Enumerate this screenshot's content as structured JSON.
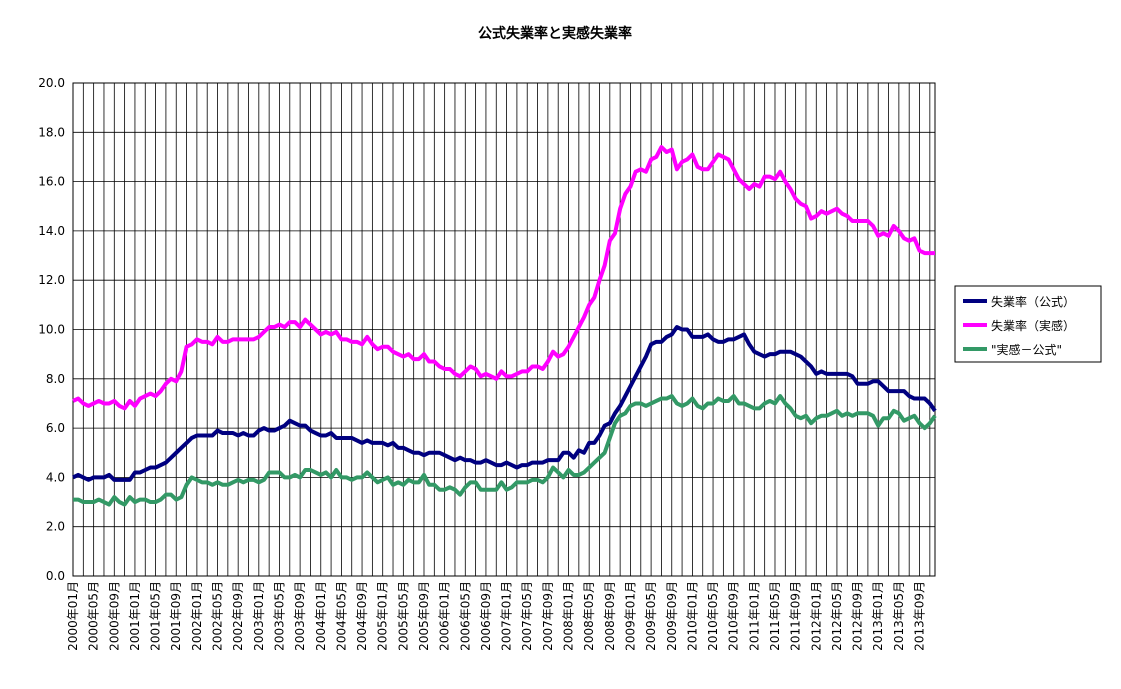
{
  "chart_data": {
    "type": "line",
    "title": "公式失業率と実感失業率",
    "categories": [
      "2000年01月",
      null,
      null,
      null,
      "2000年05月",
      null,
      null,
      null,
      "2000年09月",
      null,
      null,
      null,
      "2001年01月",
      null,
      null,
      null,
      "2001年05月",
      null,
      null,
      null,
      "2001年09月",
      null,
      null,
      null,
      "2002年01月",
      null,
      null,
      null,
      "2002年05月",
      null,
      null,
      null,
      "2002年09月",
      null,
      null,
      null,
      "2003年01月",
      null,
      null,
      null,
      "2003年05月",
      null,
      null,
      null,
      "2003年09月",
      null,
      null,
      null,
      "2004年01月",
      null,
      null,
      null,
      "2004年05月",
      null,
      null,
      null,
      "2004年09月",
      null,
      null,
      null,
      "2005年01月",
      null,
      null,
      null,
      "2005年05月",
      null,
      null,
      null,
      "2005年09月",
      null,
      null,
      null,
      "2006年01月",
      null,
      null,
      null,
      "2006年05月",
      null,
      null,
      null,
      "2006年09月",
      null,
      null,
      null,
      "2007年01月",
      null,
      null,
      null,
      "2007年05月",
      null,
      null,
      null,
      "2007年09月",
      null,
      null,
      null,
      "2008年01月",
      null,
      null,
      null,
      "2008年05月",
      null,
      null,
      null,
      "2008年09月",
      null,
      null,
      null,
      "2009年01月",
      null,
      null,
      null,
      "2009年05月",
      null,
      null,
      null,
      "2009年09月",
      null,
      null,
      null,
      "2010年01月",
      null,
      null,
      null,
      "2010年05月",
      null,
      null,
      null,
      "2010年09月",
      null,
      null,
      null,
      "2011年01月",
      null,
      null,
      null,
      "2011年05月",
      null,
      null,
      null,
      "2011年09月",
      null,
      null,
      null,
      "2012年01月",
      null,
      null,
      null,
      "2012年05月",
      null,
      null,
      null,
      "2012年09月",
      null,
      null,
      null,
      "2013年01月",
      null,
      null,
      null,
      "2013年05月",
      null,
      null,
      null,
      "2013年09月",
      null,
      null,
      null
    ],
    "series": [
      {
        "name": "失業率（公式）",
        "color": "#000080",
        "values": [
          4.0,
          4.1,
          4.0,
          3.9,
          4.0,
          4.0,
          4.0,
          4.1,
          3.9,
          3.9,
          3.9,
          3.9,
          4.2,
          4.2,
          4.3,
          4.4,
          4.4,
          4.5,
          4.6,
          4.8,
          5.0,
          5.2,
          5.4,
          5.6,
          5.7,
          5.7,
          5.7,
          5.7,
          5.9,
          5.8,
          5.8,
          5.8,
          5.7,
          5.8,
          5.7,
          5.7,
          5.9,
          6.0,
          5.9,
          5.9,
          6.0,
          6.1,
          6.3,
          6.2,
          6.1,
          6.1,
          5.9,
          5.8,
          5.7,
          5.7,
          5.8,
          5.6,
          5.6,
          5.6,
          5.6,
          5.5,
          5.4,
          5.5,
          5.4,
          5.4,
          5.4,
          5.3,
          5.4,
          5.2,
          5.2,
          5.1,
          5.0,
          5.0,
          4.9,
          5.0,
          5.0,
          5.0,
          4.9,
          4.8,
          4.7,
          4.8,
          4.7,
          4.7,
          4.6,
          4.6,
          4.7,
          4.6,
          4.5,
          4.5,
          4.6,
          4.5,
          4.4,
          4.5,
          4.5,
          4.6,
          4.6,
          4.6,
          4.7,
          4.7,
          4.7,
          5.0,
          5.0,
          4.8,
          5.1,
          5.0,
          5.4,
          5.4,
          5.7,
          6.1,
          6.2,
          6.6,
          6.9,
          7.3,
          7.7,
          8.1,
          8.5,
          8.9,
          9.4,
          9.5,
          9.5,
          9.7,
          9.8,
          10.1,
          10.0,
          10.0,
          9.7,
          9.7,
          9.7,
          9.8,
          9.6,
          9.5,
          9.5,
          9.6,
          9.6,
          9.7,
          9.8,
          9.4,
          9.1,
          9.0,
          8.9,
          9.0,
          9.0,
          9.1,
          9.1,
          9.1,
          9.0,
          8.9,
          8.7,
          8.5,
          8.2,
          8.3,
          8.2,
          8.2,
          8.2,
          8.2,
          8.2,
          8.1,
          7.8,
          7.8,
          7.8,
          7.9,
          7.9,
          7.7,
          7.5,
          7.5,
          7.5,
          7.5,
          7.3,
          7.2,
          7.2,
          7.2,
          7.0,
          6.7
        ]
      },
      {
        "name": "失業率（実感）",
        "color": "#ff00ff",
        "values": [
          7.1,
          7.2,
          7.0,
          6.9,
          7.0,
          7.1,
          7.0,
          7.0,
          7.1,
          6.9,
          6.8,
          7.1,
          6.9,
          7.2,
          7.3,
          7.4,
          7.3,
          7.5,
          7.8,
          8.0,
          7.9,
          8.3,
          9.3,
          9.4,
          9.6,
          9.5,
          9.5,
          9.4,
          9.7,
          9.5,
          9.5,
          9.6,
          9.6,
          9.6,
          9.6,
          9.6,
          9.7,
          9.9,
          10.1,
          10.1,
          10.2,
          10.1,
          10.3,
          10.3,
          10.1,
          10.4,
          10.2,
          10.0,
          9.8,
          9.9,
          9.8,
          9.9,
          9.6,
          9.6,
          9.5,
          9.5,
          9.4,
          9.7,
          9.4,
          9.2,
          9.3,
          9.3,
          9.1,
          9.0,
          8.9,
          9.0,
          8.8,
          8.8,
          9.0,
          8.7,
          8.7,
          8.5,
          8.4,
          8.4,
          8.2,
          8.1,
          8.3,
          8.5,
          8.4,
          8.1,
          8.2,
          8.1,
          8.0,
          8.3,
          8.1,
          8.1,
          8.2,
          8.3,
          8.3,
          8.5,
          8.5,
          8.4,
          8.7,
          9.1,
          8.9,
          9.0,
          9.3,
          9.7,
          10.1,
          10.5,
          11.0,
          11.3,
          12.0,
          12.6,
          13.6,
          13.9,
          14.9,
          15.5,
          15.8,
          16.4,
          16.5,
          16.4,
          16.9,
          17.0,
          17.4,
          17.2,
          17.3,
          16.5,
          16.8,
          16.9,
          17.1,
          16.6,
          16.5,
          16.5,
          16.8,
          17.1,
          17.0,
          16.9,
          16.5,
          16.1,
          15.9,
          15.7,
          15.9,
          15.8,
          16.2,
          16.2,
          16.1,
          16.4,
          16.0,
          15.7,
          15.3,
          15.1,
          15.0,
          14.5,
          14.6,
          14.8,
          14.7,
          14.8,
          14.9,
          14.7,
          14.6,
          14.4,
          14.4,
          14.4,
          14.4,
          14.2,
          13.8,
          13.9,
          13.8,
          14.2,
          14.0,
          13.7,
          13.6,
          13.7,
          13.2,
          13.1,
          13.1,
          13.1
        ]
      },
      {
        "name": "\"実感－公式\"",
        "color": "#339966",
        "values": [
          3.1,
          3.1,
          3.0,
          3.0,
          3.0,
          3.1,
          3.0,
          2.9,
          3.2,
          3.0,
          2.9,
          3.2,
          3.0,
          3.1,
          3.1,
          3.0,
          3.0,
          3.1,
          3.3,
          3.3,
          3.1,
          3.2,
          3.7,
          4.0,
          3.9,
          3.8,
          3.8,
          3.7,
          3.8,
          3.7,
          3.7,
          3.8,
          3.9,
          3.8,
          3.9,
          3.9,
          3.8,
          3.9,
          4.2,
          4.2,
          4.2,
          4.0,
          4.0,
          4.1,
          4.0,
          4.3,
          4.3,
          4.2,
          4.1,
          4.2,
          4.0,
          4.3,
          4.0,
          4.0,
          3.9,
          4.0,
          4.0,
          4.2,
          4.0,
          3.8,
          3.9,
          4.0,
          3.7,
          3.8,
          3.7,
          3.9,
          3.8,
          3.8,
          4.1,
          3.7,
          3.7,
          3.5,
          3.5,
          3.6,
          3.5,
          3.3,
          3.6,
          3.8,
          3.8,
          3.5,
          3.5,
          3.5,
          3.5,
          3.8,
          3.5,
          3.6,
          3.8,
          3.8,
          3.8,
          3.9,
          3.9,
          3.8,
          4.0,
          4.4,
          4.2,
          4.0,
          4.3,
          4.1,
          4.1,
          4.2,
          4.4,
          4.6,
          4.8,
          5.0,
          5.6,
          6.2,
          6.5,
          6.6,
          6.9,
          7.0,
          7.0,
          6.9,
          7.0,
          7.1,
          7.2,
          7.2,
          7.3,
          7.0,
          6.9,
          7.0,
          7.2,
          6.9,
          6.8,
          7.0,
          7.0,
          7.2,
          7.1,
          7.1,
          7.3,
          7.0,
          7.0,
          6.9,
          6.8,
          6.8,
          7.0,
          7.1,
          7.0,
          7.3,
          7.0,
          6.8,
          6.5,
          6.4,
          6.5,
          6.2,
          6.4,
          6.5,
          6.5,
          6.6,
          6.7,
          6.5,
          6.6,
          6.5,
          6.6,
          6.6,
          6.6,
          6.5,
          6.1,
          6.4,
          6.4,
          6.7,
          6.6,
          6.3,
          6.4,
          6.5,
          6.2,
          6.0,
          6.2,
          6.5
        ]
      }
    ],
    "ylim": [
      0,
      20
    ],
    "yticks": [
      {
        "value": 0,
        "label": "0.0"
      },
      {
        "value": 2,
        "label": "2.0"
      },
      {
        "value": 4,
        "label": "4.0"
      },
      {
        "value": 6,
        "label": "6.0"
      },
      {
        "value": 8,
        "label": "8.0"
      },
      {
        "value": 10,
        "label": "10.0"
      },
      {
        "value": 12,
        "label": "12.0"
      },
      {
        "value": 14,
        "label": "14.0"
      },
      {
        "value": 16,
        "label": "16.0"
      },
      {
        "value": 18,
        "label": "18.0"
      },
      {
        "value": 20,
        "label": "20.0"
      }
    ],
    "grid": true,
    "legend": "right"
  }
}
